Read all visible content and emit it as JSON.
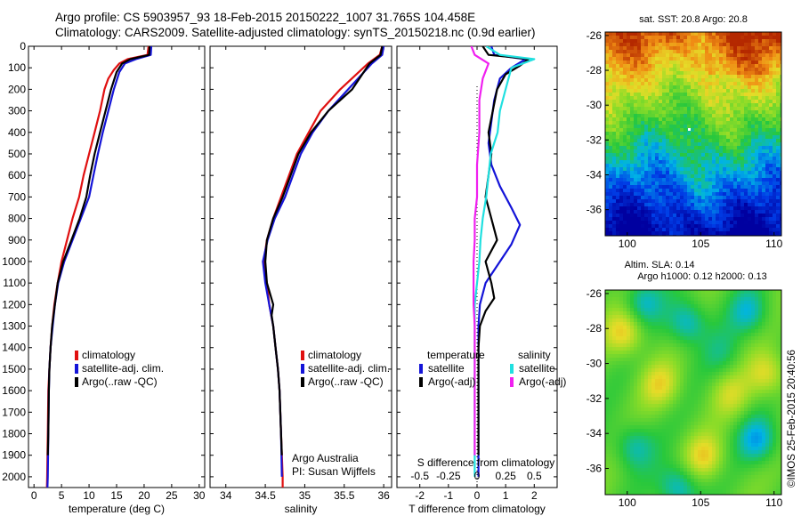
{
  "header": {
    "line1": "Argo profile: CS 5903957_93 18-Feb-2015 20150222_1007 31.765S 104.458E",
    "line2": "Climatology: CARS2009. Satellite-adjusted climatology: synTS_20150218.nc (0.9d earlier)"
  },
  "credit": "©IMOS 25-Feb-2015 20:40:56",
  "colors": {
    "climatology": "#e01010",
    "satellite": "#1414d8",
    "argo": "#000000",
    "sal_satellite": "#20e0e0",
    "sal_argo": "#f020f0"
  },
  "chart_data": [
    {
      "id": "temperature",
      "type": "line",
      "xlabel": "temperature (deg C)",
      "ylabel": "",
      "xlim": [
        -1,
        31
      ],
      "ylim": [
        2050,
        0
      ],
      "xticks": [
        0,
        5,
        10,
        15,
        20,
        25,
        30
      ],
      "yticks": [
        0,
        100,
        200,
        300,
        400,
        500,
        600,
        700,
        800,
        900,
        1000,
        1100,
        1200,
        1300,
        1400,
        1500,
        1600,
        1700,
        1800,
        1900,
        2000
      ],
      "legend": [
        "climatology",
        "satellite-adj. clim.",
        "Argo(..raw -QC)"
      ],
      "series": [
        {
          "name": "climatology",
          "color": "#e01010",
          "points": [
            [
              20.8,
              0
            ],
            [
              20.6,
              40
            ],
            [
              17.0,
              60
            ],
            [
              15.5,
              80
            ],
            [
              14.5,
              110
            ],
            [
              13.5,
              150
            ],
            [
              12.8,
              200
            ],
            [
              12.0,
              300
            ],
            [
              11.0,
              400
            ],
            [
              10.0,
              500
            ],
            [
              9.0,
              600
            ],
            [
              8.2,
              700
            ],
            [
              7.0,
              800
            ],
            [
              6.0,
              900
            ],
            [
              5.0,
              1000
            ],
            [
              4.3,
              1100
            ],
            [
              3.7,
              1200
            ],
            [
              3.3,
              1300
            ],
            [
              3.0,
              1400
            ],
            [
              2.8,
              1500
            ],
            [
              2.6,
              1600
            ],
            [
              2.5,
              1800
            ],
            [
              2.4,
              2000
            ],
            [
              2.35,
              2050
            ]
          ]
        },
        {
          "name": "satellite-adj. clim.",
          "color": "#1414d8",
          "points": [
            [
              21.3,
              0
            ],
            [
              21.2,
              40
            ],
            [
              18.5,
              60
            ],
            [
              16.5,
              80
            ],
            [
              15.5,
              120
            ],
            [
              14.5,
              200
            ],
            [
              13.5,
              300
            ],
            [
              12.5,
              400
            ],
            [
              11.6,
              500
            ],
            [
              10.8,
              600
            ],
            [
              10.0,
              700
            ],
            [
              8.5,
              800
            ],
            [
              7.0,
              900
            ],
            [
              5.5,
              1000
            ],
            [
              4.4,
              1100
            ],
            [
              3.8,
              1200
            ],
            [
              3.4,
              1300
            ],
            [
              3.0,
              1400
            ],
            [
              2.8,
              1500
            ],
            [
              2.7,
              1600
            ],
            [
              2.6,
              1800
            ],
            [
              2.5,
              2000
            ],
            [
              2.45,
              2050
            ]
          ]
        },
        {
          "name": "Argo(..raw -QC)",
          "color": "#000000",
          "points": [
            [
              21.0,
              0
            ],
            [
              20.9,
              40
            ],
            [
              17.5,
              60
            ],
            [
              16.0,
              80
            ],
            [
              15.0,
              120
            ],
            [
              14.0,
              200
            ],
            [
              13.0,
              300
            ],
            [
              12.0,
              400
            ],
            [
              11.0,
              500
            ],
            [
              10.2,
              600
            ],
            [
              9.5,
              700
            ],
            [
              8.3,
              800
            ],
            [
              6.8,
              900
            ],
            [
              5.3,
              1000
            ],
            [
              4.3,
              1100
            ],
            [
              3.8,
              1200
            ],
            [
              3.3,
              1300
            ],
            [
              3.0,
              1400
            ],
            [
              2.8,
              1500
            ],
            [
              2.7,
              1600
            ],
            [
              2.6,
              1800
            ],
            [
              2.5,
              1900
            ]
          ]
        }
      ]
    },
    {
      "id": "salinity",
      "type": "line",
      "xlabel": "salinity",
      "ylabel": "",
      "xlim": [
        33.8,
        36.1
      ],
      "ylim": [
        2050,
        0
      ],
      "xticks": [
        34,
        34.5,
        35,
        35.5,
        36
      ],
      "ytick_labels": false,
      "legend": [
        "climatology",
        "satellite-adj. clim.",
        "Argo(..raw -QC)"
      ],
      "annotation": [
        "Argo Australia",
        "PI: Susan Wijffels"
      ],
      "series": [
        {
          "name": "climatology",
          "color": "#e01010",
          "points": [
            [
              35.98,
              0
            ],
            [
              35.95,
              40
            ],
            [
              35.8,
              80
            ],
            [
              35.45,
              200
            ],
            [
              35.2,
              300
            ],
            [
              35.05,
              400
            ],
            [
              34.9,
              500
            ],
            [
              34.8,
              600
            ],
            [
              34.7,
              700
            ],
            [
              34.6,
              800
            ],
            [
              34.52,
              900
            ],
            [
              34.48,
              1000
            ],
            [
              34.52,
              1100
            ],
            [
              34.55,
              1200
            ],
            [
              34.6,
              1300
            ],
            [
              34.63,
              1400
            ],
            [
              34.66,
              1500
            ],
            [
              34.68,
              1600
            ],
            [
              34.7,
              1800
            ],
            [
              34.72,
              2000
            ],
            [
              34.72,
              2050
            ]
          ]
        },
        {
          "name": "satellite-adj. clim.",
          "color": "#1414d8",
          "points": [
            [
              36.0,
              0
            ],
            [
              35.98,
              40
            ],
            [
              35.85,
              80
            ],
            [
              35.55,
              200
            ],
            [
              35.3,
              300
            ],
            [
              35.1,
              400
            ],
            [
              34.95,
              500
            ],
            [
              34.85,
              600
            ],
            [
              34.75,
              700
            ],
            [
              34.62,
              800
            ],
            [
              34.53,
              900
            ],
            [
              34.47,
              1000
            ],
            [
              34.5,
              1100
            ],
            [
              34.55,
              1200
            ],
            [
              34.6,
              1300
            ],
            [
              34.63,
              1400
            ],
            [
              34.66,
              1500
            ],
            [
              34.68,
              1600
            ],
            [
              34.7,
              1800
            ],
            [
              34.71,
              2000
            ]
          ]
        },
        {
          "name": "Argo(..raw -QC)",
          "color": "#000000",
          "points": [
            [
              35.98,
              0
            ],
            [
              35.96,
              40
            ],
            [
              35.82,
              80
            ],
            [
              35.6,
              200
            ],
            [
              35.3,
              300
            ],
            [
              35.08,
              400
            ],
            [
              34.92,
              500
            ],
            [
              34.82,
              600
            ],
            [
              34.72,
              700
            ],
            [
              34.6,
              800
            ],
            [
              34.52,
              900
            ],
            [
              34.5,
              1000
            ],
            [
              34.52,
              1100
            ],
            [
              34.6,
              1200
            ],
            [
              34.58,
              1250
            ],
            [
              34.6,
              1300
            ],
            [
              34.63,
              1400
            ],
            [
              34.66,
              1500
            ],
            [
              34.68,
              1600
            ],
            [
              34.7,
              1800
            ],
            [
              34.71,
              1900
            ]
          ]
        }
      ]
    },
    {
      "id": "difference",
      "type": "line",
      "xlabel": "T difference from climatology",
      "x2label": "S difference from climatology",
      "xlim": [
        -2.8,
        2.8
      ],
      "ylim": [
        2050,
        0
      ],
      "xticks": [
        -2,
        -1,
        0,
        1,
        2
      ],
      "x2ticks": [
        -0.5,
        -0.25,
        0,
        0.25,
        0.5
      ],
      "x2tick_labels": [
        "-0.5",
        "-0.25",
        "0",
        "0.25",
        "0.5"
      ],
      "ytick_labels": false,
      "legend_groups": [
        {
          "title": "temperature",
          "items": [
            "satellite",
            "Argo(-adj)"
          ]
        },
        {
          "title": "salinity",
          "items": [
            "satellite",
            "Argo(-adj)"
          ]
        }
      ],
      "series": [
        {
          "name": "satellite",
          "group": "temperature",
          "color": "#1414d8",
          "points": [
            [
              0.5,
              0
            ],
            [
              0.6,
              40
            ],
            [
              1.7,
              60
            ],
            [
              1.2,
              100
            ],
            [
              0.8,
              150
            ],
            [
              0.6,
              250
            ],
            [
              0.5,
              350
            ],
            [
              0.4,
              450
            ],
            [
              0.5,
              550
            ],
            [
              0.8,
              650
            ],
            [
              1.2,
              750
            ],
            [
              1.5,
              830
            ],
            [
              1.2,
              920
            ],
            [
              0.8,
              1000
            ],
            [
              0.3,
              1100
            ],
            [
              0.1,
              1200
            ],
            [
              0.05,
              1300
            ],
            [
              0.05,
              1500
            ],
            [
              0.05,
              1700
            ],
            [
              0.05,
              1900
            ],
            [
              0.05,
              2000
            ]
          ]
        },
        {
          "name": "Argo(-adj)",
          "group": "temperature",
          "color": "#000000",
          "points": [
            [
              0.2,
              0
            ],
            [
              0.4,
              40
            ],
            [
              1.2,
              50
            ],
            [
              1.8,
              60
            ],
            [
              1.5,
              90
            ],
            [
              1.0,
              130
            ],
            [
              0.7,
              200
            ],
            [
              0.55,
              300
            ],
            [
              0.4,
              400
            ],
            [
              0.5,
              500
            ],
            [
              0.4,
              600
            ],
            [
              0.3,
              700
            ],
            [
              0.5,
              800
            ],
            [
              0.7,
              900
            ],
            [
              0.3,
              1000
            ],
            [
              0.5,
              1100
            ],
            [
              0.6,
              1170
            ],
            [
              0.3,
              1230
            ],
            [
              0.1,
              1300
            ],
            [
              0.05,
              1400
            ],
            [
              0.05,
              1600
            ],
            [
              0.05,
              1800
            ],
            [
              0.05,
              1900
            ]
          ]
        },
        {
          "name": "satellite",
          "group": "salinity",
          "color": "#20e0e0",
          "points": [
            [
              0.08,
              0
            ],
            [
              0.2,
              40
            ],
            [
              0.5,
              60
            ],
            [
              0.3,
              100
            ],
            [
              0.25,
              200
            ],
            [
              0.2,
              300
            ],
            [
              0.18,
              400
            ],
            [
              0.12,
              500
            ],
            [
              0.1,
              600
            ],
            [
              0.08,
              700
            ],
            [
              0.05,
              800
            ],
            [
              0.03,
              900
            ],
            [
              0.02,
              1000
            ],
            [
              0.0,
              1100
            ],
            [
              -0.02,
              1200
            ],
            [
              -0.02,
              1300
            ],
            [
              -0.02,
              1500
            ],
            [
              -0.02,
              1700
            ],
            [
              -0.02,
              1900
            ],
            [
              -0.02,
              2000
            ]
          ]
        },
        {
          "name": "Argo(-adj)",
          "group": "salinity",
          "color": "#f020f0",
          "points": [
            [
              -0.05,
              0
            ],
            [
              -0.02,
              40
            ],
            [
              0.1,
              80
            ],
            [
              0.05,
              150
            ],
            [
              0.02,
              250
            ],
            [
              0.02,
              400
            ],
            [
              0.0,
              550
            ],
            [
              0.0,
              700
            ],
            [
              -0.02,
              800
            ],
            [
              -0.02,
              900
            ],
            [
              -0.03,
              1000
            ],
            [
              -0.03,
              1100
            ],
            [
              -0.03,
              1200
            ],
            [
              -0.02,
              1300
            ],
            [
              -0.02,
              1500
            ],
            [
              -0.02,
              1700
            ],
            [
              -0.02,
              1900
            ]
          ]
        }
      ]
    },
    {
      "id": "sst-map",
      "type": "heatmap",
      "title": "sat. SST: 20.8 Argo: 20.8",
      "xlim": [
        98.5,
        110.5
      ],
      "ylim": [
        -37.5,
        -25.8
      ],
      "xticks": [
        100,
        105,
        110
      ],
      "yticks": [
        -26,
        -28,
        -30,
        -32,
        -34,
        -36
      ],
      "grid": false
    },
    {
      "id": "sla-map",
      "type": "heatmap",
      "title_lines": [
        "Altim. SLA: 0.14",
        "Argo h1000: 0.12 h2000: 0.13"
      ],
      "xlim": [
        98.5,
        110.5
      ],
      "ylim": [
        -37.5,
        -25.8
      ],
      "xticks": [
        100,
        105,
        110
      ],
      "yticks": [
        -26,
        -28,
        -30,
        -32,
        -34,
        -36
      ],
      "grid": false
    }
  ]
}
